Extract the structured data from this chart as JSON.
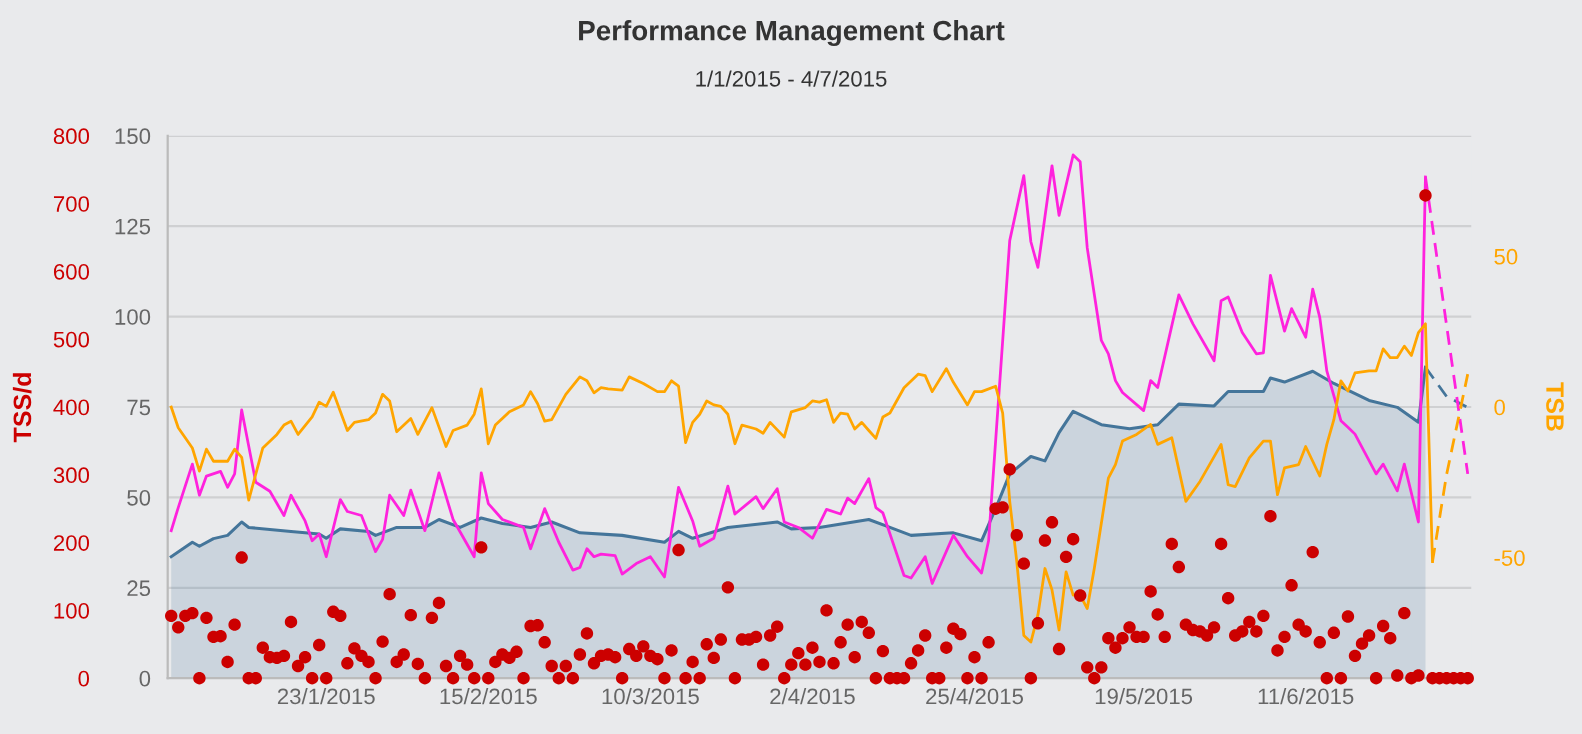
{
  "chart_data": {
    "type": "line",
    "title": "Performance Management Chart",
    "subtitle": "1/1/2015 - 4/7/2015",
    "y2label": "TSS/d",
    "y3label": "TSB",
    "xlim": [
      "2014-12-31T12:00",
      "2015-07-04T12:00"
    ],
    "xticks": [
      {
        "value": "2015-01-23",
        "label": "23/1/2015"
      },
      {
        "value": "2015-02-15",
        "label": "15/2/2015"
      },
      {
        "value": "2015-03-10",
        "label": "10/3/2015"
      },
      {
        "value": "2015-04-02",
        "label": "2/4/2015"
      },
      {
        "value": "2015-04-25",
        "label": "25/4/2015"
      },
      {
        "value": "2015-05-19",
        "label": "19/5/2015"
      },
      {
        "value": "2015-06-11",
        "label": "11/6/2015"
      }
    ],
    "ylim": [
      0,
      150
    ],
    "yticks": [
      0,
      25,
      50,
      75,
      100,
      125,
      150
    ],
    "y2lim": [
      0,
      800
    ],
    "y2ticks": [
      0,
      100,
      200,
      300,
      400,
      500,
      600,
      700,
      800
    ],
    "y3lim": [
      -90,
      90
    ],
    "y3ticks": [
      -50,
      0,
      50
    ],
    "grid": "y",
    "legend": false,
    "x": [
      "2015-01-01",
      "2015-01-02",
      "2015-01-03",
      "2015-01-04",
      "2015-01-05",
      "2015-01-06",
      "2015-01-07",
      "2015-01-08",
      "2015-01-09",
      "2015-01-10",
      "2015-01-11",
      "2015-01-12",
      "2015-01-13",
      "2015-01-14",
      "2015-01-15",
      "2015-01-16",
      "2015-01-17",
      "2015-01-18",
      "2015-01-19",
      "2015-01-20",
      "2015-01-21",
      "2015-01-22",
      "2015-01-23",
      "2015-01-24",
      "2015-01-25",
      "2015-01-26",
      "2015-01-27",
      "2015-01-28",
      "2015-01-29",
      "2015-01-30",
      "2015-01-31",
      "2015-02-01",
      "2015-02-02",
      "2015-02-03",
      "2015-02-04",
      "2015-02-05",
      "2015-02-06",
      "2015-02-07",
      "2015-02-08",
      "2015-02-09",
      "2015-02-10",
      "2015-02-11",
      "2015-02-12",
      "2015-02-13",
      "2015-02-14",
      "2015-02-15",
      "2015-02-16",
      "2015-02-17",
      "2015-02-18",
      "2015-02-19",
      "2015-02-20",
      "2015-02-21",
      "2015-02-22",
      "2015-02-23",
      "2015-02-24",
      "2015-02-25",
      "2015-02-26",
      "2015-02-27",
      "2015-02-28",
      "2015-03-01",
      "2015-03-02",
      "2015-03-03",
      "2015-03-04",
      "2015-03-05",
      "2015-03-06",
      "2015-03-07",
      "2015-03-08",
      "2015-03-09",
      "2015-03-10",
      "2015-03-11",
      "2015-03-12",
      "2015-03-13",
      "2015-03-14",
      "2015-03-15",
      "2015-03-16",
      "2015-03-17",
      "2015-03-18",
      "2015-03-19",
      "2015-03-20",
      "2015-03-21",
      "2015-03-22",
      "2015-03-23",
      "2015-03-24",
      "2015-03-25",
      "2015-03-26",
      "2015-03-27",
      "2015-03-28",
      "2015-03-29",
      "2015-03-30",
      "2015-03-31",
      "2015-04-01",
      "2015-04-02",
      "2015-04-03",
      "2015-04-04",
      "2015-04-05",
      "2015-04-06",
      "2015-04-07",
      "2015-04-08",
      "2015-04-09",
      "2015-04-10",
      "2015-04-11",
      "2015-04-12",
      "2015-04-13",
      "2015-04-14",
      "2015-04-15",
      "2015-04-16",
      "2015-04-17",
      "2015-04-18",
      "2015-04-19",
      "2015-04-20",
      "2015-04-21",
      "2015-04-22",
      "2015-04-23",
      "2015-04-24",
      "2015-04-25",
      "2015-04-26",
      "2015-04-27",
      "2015-04-28",
      "2015-04-29",
      "2015-04-30",
      "2015-05-01",
      "2015-05-02",
      "2015-05-03",
      "2015-05-04",
      "2015-05-05",
      "2015-05-06",
      "2015-05-07",
      "2015-05-08",
      "2015-05-09",
      "2015-05-10",
      "2015-05-11",
      "2015-05-12",
      "2015-05-13",
      "2015-05-14",
      "2015-05-15",
      "2015-05-16",
      "2015-05-17",
      "2015-05-18",
      "2015-05-19",
      "2015-05-20",
      "2015-05-21",
      "2015-05-22",
      "2015-05-23",
      "2015-05-24",
      "2015-05-25",
      "2015-05-26",
      "2015-05-27",
      "2015-05-28",
      "2015-05-29",
      "2015-05-30",
      "2015-05-31",
      "2015-06-01",
      "2015-06-02",
      "2015-06-03",
      "2015-06-04",
      "2015-06-05",
      "2015-06-06",
      "2015-06-07",
      "2015-06-08",
      "2015-06-09",
      "2015-06-10",
      "2015-06-11",
      "2015-06-12",
      "2015-06-13",
      "2015-06-14",
      "2015-06-15",
      "2015-06-16",
      "2015-06-17",
      "2015-06-18",
      "2015-06-19",
      "2015-06-20",
      "2015-06-21",
      "2015-06-22",
      "2015-06-23",
      "2015-06-24",
      "2015-06-25",
      "2015-06-26",
      "2015-06-27",
      "2015-06-28",
      "2015-06-29",
      "2015-06-30",
      "2015-07-01",
      "2015-07-02",
      "2015-07-03",
      "2015-07-04"
    ],
    "series": [
      {
        "type": "area",
        "axis": "y",
        "color": "#44759a",
        "x": [
          "2015-01-01",
          "2015-01-04",
          "2015-01-05",
          "2015-01-07",
          "2015-01-09",
          "2015-01-11",
          "2015-01-12",
          "2015-01-18",
          "2015-01-22",
          "2015-01-23",
          "2015-01-25",
          "2015-01-29",
          "2015-01-30",
          "2015-02-02",
          "2015-02-06",
          "2015-02-08",
          "2015-02-11",
          "2015-02-14",
          "2015-02-17",
          "2015-02-21",
          "2015-02-24",
          "2015-02-28",
          "2015-03-06",
          "2015-03-12",
          "2015-03-14",
          "2015-03-16",
          "2015-03-21",
          "2015-03-28",
          "2015-03-30",
          "2015-04-03",
          "2015-04-10",
          "2015-04-13",
          "2015-04-16",
          "2015-04-22",
          "2015-04-26",
          "2015-04-28",
          "2015-04-30",
          "2015-05-03",
          "2015-05-05",
          "2015-05-07",
          "2015-05-09",
          "2015-05-13",
          "2015-05-17",
          "2015-05-21",
          "2015-05-24",
          "2015-05-29",
          "2015-05-31",
          "2015-06-05",
          "2015-06-06",
          "2015-06-08",
          "2015-06-12",
          "2015-06-15",
          "2015-06-20",
          "2015-06-24",
          "2015-06-27",
          "2015-06-28"
        ],
        "values": [
          33.6,
          37.6,
          36.5,
          38.6,
          39.5,
          43.2,
          41.7,
          40.6,
          39.9,
          38.7,
          41.3,
          40.6,
          39.5,
          41.7,
          41.7,
          43.9,
          41.7,
          44.3,
          42.8,
          41.7,
          43.2,
          40.2,
          39.5,
          37.6,
          40.6,
          38.7,
          41.7,
          43.2,
          41.3,
          41.7,
          43.9,
          41.7,
          39.5,
          40.2,
          38,
          46.9,
          56.5,
          61.3,
          60.1,
          67.9,
          73.8,
          70.1,
          69,
          70.1,
          75.8,
          75.3,
          79.3,
          79.3,
          83,
          81.9,
          84.9,
          81.5,
          76.8,
          74.9,
          70.8,
          86
        ]
      },
      {
        "axis": "y",
        "color": "#44759a",
        "line_style": "dashed",
        "x": [
          "2015-06-28",
          "2015-07-01",
          "2015-07-04"
        ],
        "values": [
          86,
          77.9,
          74.9
        ]
      },
      {
        "axis": "y3",
        "color": "#ffa500",
        "x": [
          "2015-01-01",
          "2015-01-02",
          "2015-01-04",
          "2015-01-05",
          "2015-01-06",
          "2015-01-07",
          "2015-01-09",
          "2015-01-10",
          "2015-01-11",
          "2015-01-12",
          "2015-01-14",
          "2015-01-16",
          "2015-01-17",
          "2015-01-18",
          "2015-01-19",
          "2015-01-21",
          "2015-01-22",
          "2015-01-23",
          "2015-01-24",
          "2015-01-26",
          "2015-01-27",
          "2015-01-29",
          "2015-01-30",
          "2015-01-31",
          "2015-02-01",
          "2015-02-02",
          "2015-02-04",
          "2015-02-05",
          "2015-02-07",
          "2015-02-09",
          "2015-02-10",
          "2015-02-12",
          "2015-02-13",
          "2015-02-14",
          "2015-02-15",
          "2015-02-16",
          "2015-02-18",
          "2015-02-20",
          "2015-02-21",
          "2015-02-22",
          "2015-02-23",
          "2015-02-24",
          "2015-02-26",
          "2015-02-28",
          "2015-03-01",
          "2015-03-02",
          "2015-03-03",
          "2015-03-04",
          "2015-03-06",
          "2015-03-07",
          "2015-03-09",
          "2015-03-11",
          "2015-03-12",
          "2015-03-13",
          "2015-03-14",
          "2015-03-15",
          "2015-03-16",
          "2015-03-17",
          "2015-03-18",
          "2015-03-19",
          "2015-03-20",
          "2015-03-21",
          "2015-03-22",
          "2015-03-23",
          "2015-03-25",
          "2015-03-26",
          "2015-03-27",
          "2015-03-29",
          "2015-03-30",
          "2015-04-01",
          "2015-04-02",
          "2015-04-03",
          "2015-04-04",
          "2015-04-05",
          "2015-04-06",
          "2015-04-07",
          "2015-04-08",
          "2015-04-09",
          "2015-04-10",
          "2015-04-11",
          "2015-04-12",
          "2015-04-13",
          "2015-04-15",
          "2015-04-17",
          "2015-04-18",
          "2015-04-19",
          "2015-04-21",
          "2015-04-22",
          "2015-04-24",
          "2015-04-25",
          "2015-04-26",
          "2015-04-28",
          "2015-04-29",
          "2015-04-30",
          "2015-05-01",
          "2015-05-02",
          "2015-05-03",
          "2015-05-04",
          "2015-05-05",
          "2015-05-06",
          "2015-05-07",
          "2015-05-08",
          "2015-05-09",
          "2015-05-10",
          "2015-05-11",
          "2015-05-12",
          "2015-05-14",
          "2015-05-15",
          "2015-05-16",
          "2015-05-18",
          "2015-05-20",
          "2015-05-21",
          "2015-05-23",
          "2015-05-25",
          "2015-05-27",
          "2015-05-30",
          "2015-05-31",
          "2015-06-01",
          "2015-06-03",
          "2015-06-05",
          "2015-06-06",
          "2015-06-07",
          "2015-06-08",
          "2015-06-10",
          "2015-06-11",
          "2015-06-13",
          "2015-06-14",
          "2015-06-15",
          "2015-06-16",
          "2015-06-17",
          "2015-06-18",
          "2015-06-20",
          "2015-06-21",
          "2015-06-22",
          "2015-06-23",
          "2015-06-24",
          "2015-06-25",
          "2015-06-26",
          "2015-06-27",
          "2015-06-28",
          "2015-06-29"
        ],
        "values": [
          0,
          -6.9,
          -13.6,
          -21.3,
          -14,
          -18,
          -18,
          -14,
          -16.7,
          -30.9,
          -13.6,
          -9.1,
          -6,
          -4.7,
          -9.1,
          -3.3,
          1.6,
          0.2,
          4.9,
          -7.8,
          -5.1,
          -4.2,
          -2,
          4.2,
          2,
          -8.2,
          -3.8,
          -9.1,
          -0.2,
          -13.1,
          -7.8,
          -6,
          -2.4,
          6,
          -12.2,
          -6,
          -1.6,
          0.7,
          5.1,
          1.1,
          -4.7,
          -4.2,
          4.2,
          10,
          8.7,
          4.7,
          6.4,
          6,
          5.6,
          10,
          7.8,
          5.1,
          5.1,
          8.7,
          6.9,
          -11.8,
          -5.1,
          -2.4,
          2,
          0.7,
          0.2,
          -2.4,
          -12.2,
          -6,
          -7.3,
          -8.7,
          -5.1,
          -10,
          -1.6,
          -0.2,
          2,
          1.6,
          2.4,
          -5.1,
          -2,
          -2.4,
          -7.3,
          -5.1,
          -7.8,
          -10.4,
          -3.3,
          -2,
          6.4,
          10.9,
          10.4,
          5.1,
          12.7,
          8.2,
          0.7,
          5.1,
          5.1,
          6.9,
          -2,
          -31.3,
          -51.3,
          -75.8,
          -78,
          -69,
          -53.6,
          -60.7,
          -74,
          -54.7,
          -62.4,
          -62.4,
          -66.9,
          -53.6,
          -23.6,
          -19.1,
          -11.3,
          -9.1,
          -5.8,
          -12.4,
          -10.2,
          -31.3,
          -24.7,
          -12.4,
          -25.8,
          -26.4,
          -16.9,
          -11.3,
          -11.3,
          -29.1,
          -20.2,
          -19.1,
          -13.1,
          -22.9,
          -12.4,
          -4.2,
          8.7,
          5.3,
          11.3,
          12,
          12,
          19.3,
          16.4,
          16.4,
          20.2,
          17.1,
          24.7,
          27.6,
          -51.3
        ]
      },
      {
        "axis": "y3",
        "color": "#ffa500",
        "line_style": "dashed",
        "x": [
          "2015-06-29",
          "2015-07-01",
          "2015-07-04"
        ],
        "values": [
          -51.3,
          -22.4,
          10.9
        ]
      },
      {
        "axis": "y",
        "color": "#ff22dd",
        "x": [
          "2015-01-01",
          "2015-01-02",
          "2015-01-04",
          "2015-01-05",
          "2015-01-06",
          "2015-01-08",
          "2015-01-09",
          "2015-01-10",
          "2015-01-11",
          "2015-01-13",
          "2015-01-15",
          "2015-01-17",
          "2015-01-18",
          "2015-01-20",
          "2015-01-21",
          "2015-01-22",
          "2015-01-23",
          "2015-01-25",
          "2015-01-26",
          "2015-01-28",
          "2015-01-30",
          "2015-01-31",
          "2015-02-01",
          "2015-02-03",
          "2015-02-04",
          "2015-02-06",
          "2015-02-08",
          "2015-02-10",
          "2015-02-13",
          "2015-02-14",
          "2015-02-15",
          "2015-02-17",
          "2015-02-20",
          "2015-02-21",
          "2015-02-23",
          "2015-02-25",
          "2015-02-27",
          "2015-02-28",
          "2015-03-01",
          "2015-03-02",
          "2015-03-03",
          "2015-03-05",
          "2015-03-06",
          "2015-03-08",
          "2015-03-10",
          "2015-03-12",
          "2015-03-14",
          "2015-03-16",
          "2015-03-17",
          "2015-03-19",
          "2015-03-21",
          "2015-03-22",
          "2015-03-25",
          "2015-03-26",
          "2015-03-28",
          "2015-03-29",
          "2015-03-31",
          "2015-04-02",
          "2015-04-04",
          "2015-04-06",
          "2015-04-07",
          "2015-04-08",
          "2015-04-10",
          "2015-04-11",
          "2015-04-12",
          "2015-04-15",
          "2015-04-16",
          "2015-04-18",
          "2015-04-19",
          "2015-04-22",
          "2015-04-24",
          "2015-04-26",
          "2015-04-27",
          "2015-04-30",
          "2015-05-02",
          "2015-05-03",
          "2015-05-04",
          "2015-05-06",
          "2015-05-07",
          "2015-05-09",
          "2015-05-10",
          "2015-05-11",
          "2015-05-13",
          "2015-05-14",
          "2015-05-15",
          "2015-05-16",
          "2015-05-19",
          "2015-05-20",
          "2015-05-21",
          "2015-05-24",
          "2015-05-26",
          "2015-05-29",
          "2015-05-30",
          "2015-05-31",
          "2015-06-02",
          "2015-06-04",
          "2015-06-05",
          "2015-06-06",
          "2015-06-08",
          "2015-06-09",
          "2015-06-11",
          "2015-06-12",
          "2015-06-13",
          "2015-06-14",
          "2015-06-16",
          "2015-06-17",
          "2015-06-18",
          "2015-06-21",
          "2015-06-22",
          "2015-06-24",
          "2015-06-25",
          "2015-06-27",
          "2015-06-28"
        ],
        "values": [
          40.8,
          47.2,
          59.2,
          50.6,
          55.9,
          57.2,
          52.8,
          56.5,
          74.2,
          54.2,
          51.7,
          45,
          50.6,
          43.5,
          38,
          39.9,
          33.6,
          49.4,
          46.1,
          45,
          35,
          38.4,
          50.6,
          45,
          52,
          40.8,
          56.8,
          43.9,
          33.6,
          56.8,
          48.3,
          43.9,
          41.7,
          35.8,
          46.9,
          37.6,
          29.9,
          30.6,
          35.8,
          33.6,
          34.3,
          33.9,
          28.8,
          31.7,
          33.6,
          28,
          52.8,
          43.5,
          36.5,
          38.7,
          53.1,
          45.4,
          50.2,
          46.9,
          52.4,
          43.2,
          41.7,
          38.7,
          46.7,
          45.4,
          49.8,
          48.3,
          55.2,
          47.2,
          45.7,
          28.4,
          27.7,
          33.6,
          26.2,
          39.5,
          33.6,
          29.1,
          38,
          121,
          139,
          120.7,
          113.6,
          141.7,
          128,
          144.7,
          142.8,
          119,
          93.4,
          89.7,
          82.3,
          79,
          74,
          82.3,
          80.4,
          106,
          98,
          87.8,
          104.4,
          105.4,
          95.6,
          89.7,
          90,
          111.4,
          96,
          102.2,
          94.3,
          107.6,
          99.8,
          85,
          71.2,
          69.4,
          67.5,
          56.5,
          59.2,
          51.8,
          59.2,
          43.2,
          138.6
        ]
      },
      {
        "axis": "y",
        "color": "#ff22dd",
        "line_style": "dashed",
        "x": [
          "2015-06-28",
          "2015-07-04"
        ],
        "values": [
          138.6,
          56.5
        ]
      },
      {
        "type": "scatter",
        "axis": "y2",
        "color": "#cc0000",
        "marker": "circle",
        "values": [
          92,
          75,
          92,
          96,
          0,
          89,
          61,
          62,
          24,
          79,
          178,
          0,
          0,
          45,
          31,
          30,
          33,
          83,
          18,
          31,
          0,
          49,
          0,
          98,
          92,
          22,
          44,
          33,
          24,
          0,
          54,
          124,
          24,
          35,
          93,
          21,
          0,
          89,
          111,
          18,
          0,
          33,
          20,
          0,
          193,
          0,
          24,
          35,
          30,
          39,
          0,
          77,
          78,
          53,
          18,
          0,
          18,
          0,
          35,
          66,
          22,
          33,
          35,
          31,
          0,
          43,
          33,
          47,
          33,
          28,
          0,
          41,
          189,
          0,
          24,
          0,
          50,
          30,
          57,
          134,
          0,
          57,
          57,
          61,
          20,
          63,
          76,
          0,
          20,
          37,
          20,
          45,
          24,
          100,
          22,
          53,
          79,
          31,
          83,
          67,
          0,
          40,
          0,
          0,
          0,
          22,
          41,
          63,
          0,
          0,
          45,
          73,
          65,
          0,
          31,
          0,
          53,
          250,
          252,
          308,
          211,
          169,
          0,
          81,
          203,
          230,
          43,
          179,
          205,
          122,
          16,
          0,
          16,
          59,
          45,
          59,
          75,
          61,
          61,
          128,
          94,
          61,
          198,
          164,
          79,
          71,
          69,
          63,
          75,
          198,
          118,
          63,
          69,
          83,
          69,
          92,
          239,
          41,
          61,
          137,
          79,
          69,
          186,
          53,
          0,
          67,
          0,
          91,
          33,
          51,
          63,
          0,
          77,
          59,
          4,
          96,
          0,
          4,
          712,
          0,
          0,
          0,
          0,
          0,
          0
        ]
      }
    ]
  }
}
